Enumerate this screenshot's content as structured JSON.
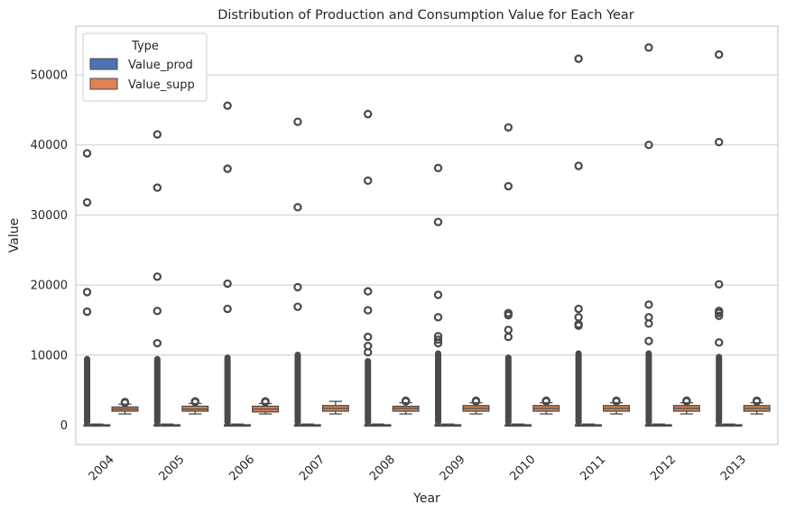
{
  "chart_data": {
    "type": "box",
    "title": "Distribution of Production and Consumption Value for Each Year",
    "xlabel": "Year",
    "ylabel": "Value",
    "categories": [
      "2004",
      "2005",
      "2006",
      "2007",
      "2008",
      "2009",
      "2010",
      "2011",
      "2012",
      "2013"
    ],
    "yticks": [
      0,
      10000,
      20000,
      30000,
      40000,
      50000
    ],
    "ylim": [
      -3000,
      57000
    ],
    "grid": "horizontal",
    "legend": {
      "title": "Type",
      "placement": "top-left",
      "entries": [
        "Value_prod",
        "Value_supp"
      ]
    },
    "series": [
      {
        "name": "Value_prod",
        "color": "#4c72b0",
        "boxes": [
          {
            "q1": 0,
            "median": 20,
            "q3": 60,
            "whisker_low": 0,
            "whisker_high": 160,
            "dense_outlier_max": 9500,
            "outliers": [
              16200,
              19000,
              31800,
              38800
            ]
          },
          {
            "q1": 0,
            "median": 20,
            "q3": 60,
            "whisker_low": 0,
            "whisker_high": 160,
            "dense_outlier_max": 9500,
            "outliers": [
              11700,
              16300,
              21200,
              33900,
              41500
            ]
          },
          {
            "q1": 0,
            "median": 20,
            "q3": 60,
            "whisker_low": 0,
            "whisker_high": 160,
            "dense_outlier_max": 9700,
            "outliers": [
              16600,
              20200,
              36600,
              45600
            ]
          },
          {
            "q1": 0,
            "median": 20,
            "q3": 60,
            "whisker_low": 0,
            "whisker_high": 160,
            "dense_outlier_max": 10100,
            "outliers": [
              16900,
              19700,
              31100,
              43300
            ]
          },
          {
            "q1": 0,
            "median": 20,
            "q3": 60,
            "whisker_low": 0,
            "whisker_high": 160,
            "dense_outlier_max": 9200,
            "outliers": [
              10400,
              11300,
              12600,
              16400,
              19100,
              34900,
              44400
            ]
          },
          {
            "q1": 0,
            "median": 20,
            "q3": 60,
            "whisker_low": 0,
            "whisker_high": 160,
            "dense_outlier_max": 10300,
            "outliers": [
              11700,
              12200,
              12700,
              15400,
              18600,
              29000,
              36700
            ]
          },
          {
            "q1": 0,
            "median": 20,
            "q3": 60,
            "whisker_low": 0,
            "whisker_high": 160,
            "dense_outlier_max": 9700,
            "outliers": [
              12600,
              13600,
              15700,
              16000,
              34100,
              42500
            ]
          },
          {
            "q1": 0,
            "median": 20,
            "q3": 60,
            "whisker_low": 0,
            "whisker_high": 160,
            "dense_outlier_max": 10300,
            "outliers": [
              14200,
              14400,
              15400,
              16600,
              37000,
              52300
            ]
          },
          {
            "q1": 0,
            "median": 20,
            "q3": 60,
            "whisker_low": 0,
            "whisker_high": 160,
            "dense_outlier_max": 10300,
            "outliers": [
              12000,
              14500,
              15400,
              17200,
              40000,
              53900
            ]
          },
          {
            "q1": 0,
            "median": 20,
            "q3": 60,
            "whisker_low": 0,
            "whisker_high": 160,
            "dense_outlier_max": 9800,
            "outliers": [
              11800,
              15600,
              16000,
              16300,
              20100,
              40400,
              52900
            ]
          }
        ]
      },
      {
        "name": "Value_supp",
        "color": "#dd8452",
        "boxes": [
          {
            "q1": 2000,
            "median": 2300,
            "q3": 2600,
            "whisker_low": 1600,
            "whisker_high": 3000,
            "outliers": [
              3200,
              3300
            ]
          },
          {
            "q1": 2000,
            "median": 2300,
            "q3": 2700,
            "whisker_low": 1600,
            "whisker_high": 3100,
            "outliers": [
              3300,
              3400
            ]
          },
          {
            "q1": 1900,
            "median": 2300,
            "q3": 2700,
            "whisker_low": 1600,
            "whisker_high": 3100,
            "outliers": [
              3300,
              3400
            ]
          },
          {
            "q1": 2000,
            "median": 2400,
            "q3": 2800,
            "whisker_low": 1600,
            "whisker_high": 3400,
            "outliers": []
          },
          {
            "q1": 2000,
            "median": 2400,
            "q3": 2700,
            "whisker_low": 1600,
            "whisker_high": 3200,
            "outliers": [
              3400,
              3500
            ]
          },
          {
            "q1": 2000,
            "median": 2400,
            "q3": 2800,
            "whisker_low": 1600,
            "whisker_high": 3200,
            "outliers": [
              3400,
              3500
            ]
          },
          {
            "q1": 2000,
            "median": 2400,
            "q3": 2800,
            "whisker_low": 1600,
            "whisker_high": 3200,
            "outliers": [
              3400,
              3500
            ]
          },
          {
            "q1": 2000,
            "median": 2400,
            "q3": 2800,
            "whisker_low": 1600,
            "whisker_high": 3200,
            "outliers": [
              3400,
              3500
            ]
          },
          {
            "q1": 2000,
            "median": 2400,
            "q3": 2800,
            "whisker_low": 1600,
            "whisker_high": 3200,
            "outliers": [
              3400,
              3500
            ]
          },
          {
            "q1": 2000,
            "median": 2400,
            "q3": 2800,
            "whisker_low": 1600,
            "whisker_high": 3200,
            "outliers": [
              3400,
              3500
            ]
          }
        ]
      }
    ]
  }
}
